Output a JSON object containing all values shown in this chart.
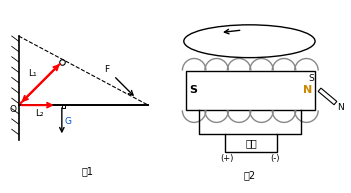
{
  "bg_color": "#ffffff",
  "red_color": "#ff0000",
  "N_color": "#cc8800",
  "coil_color": "#888888",
  "fig1_label": "图1",
  "fig2_label": "图2",
  "label_O": "O",
  "label_L1": "L₁",
  "label_L2": "L₂",
  "label_F": "F",
  "label_G": "G",
  "label_S": "S",
  "label_N": "N",
  "label_battery": "电源",
  "label_plus": "(+)",
  "label_minus": "(-)",
  "label_S2": "S",
  "label_N2": "N"
}
